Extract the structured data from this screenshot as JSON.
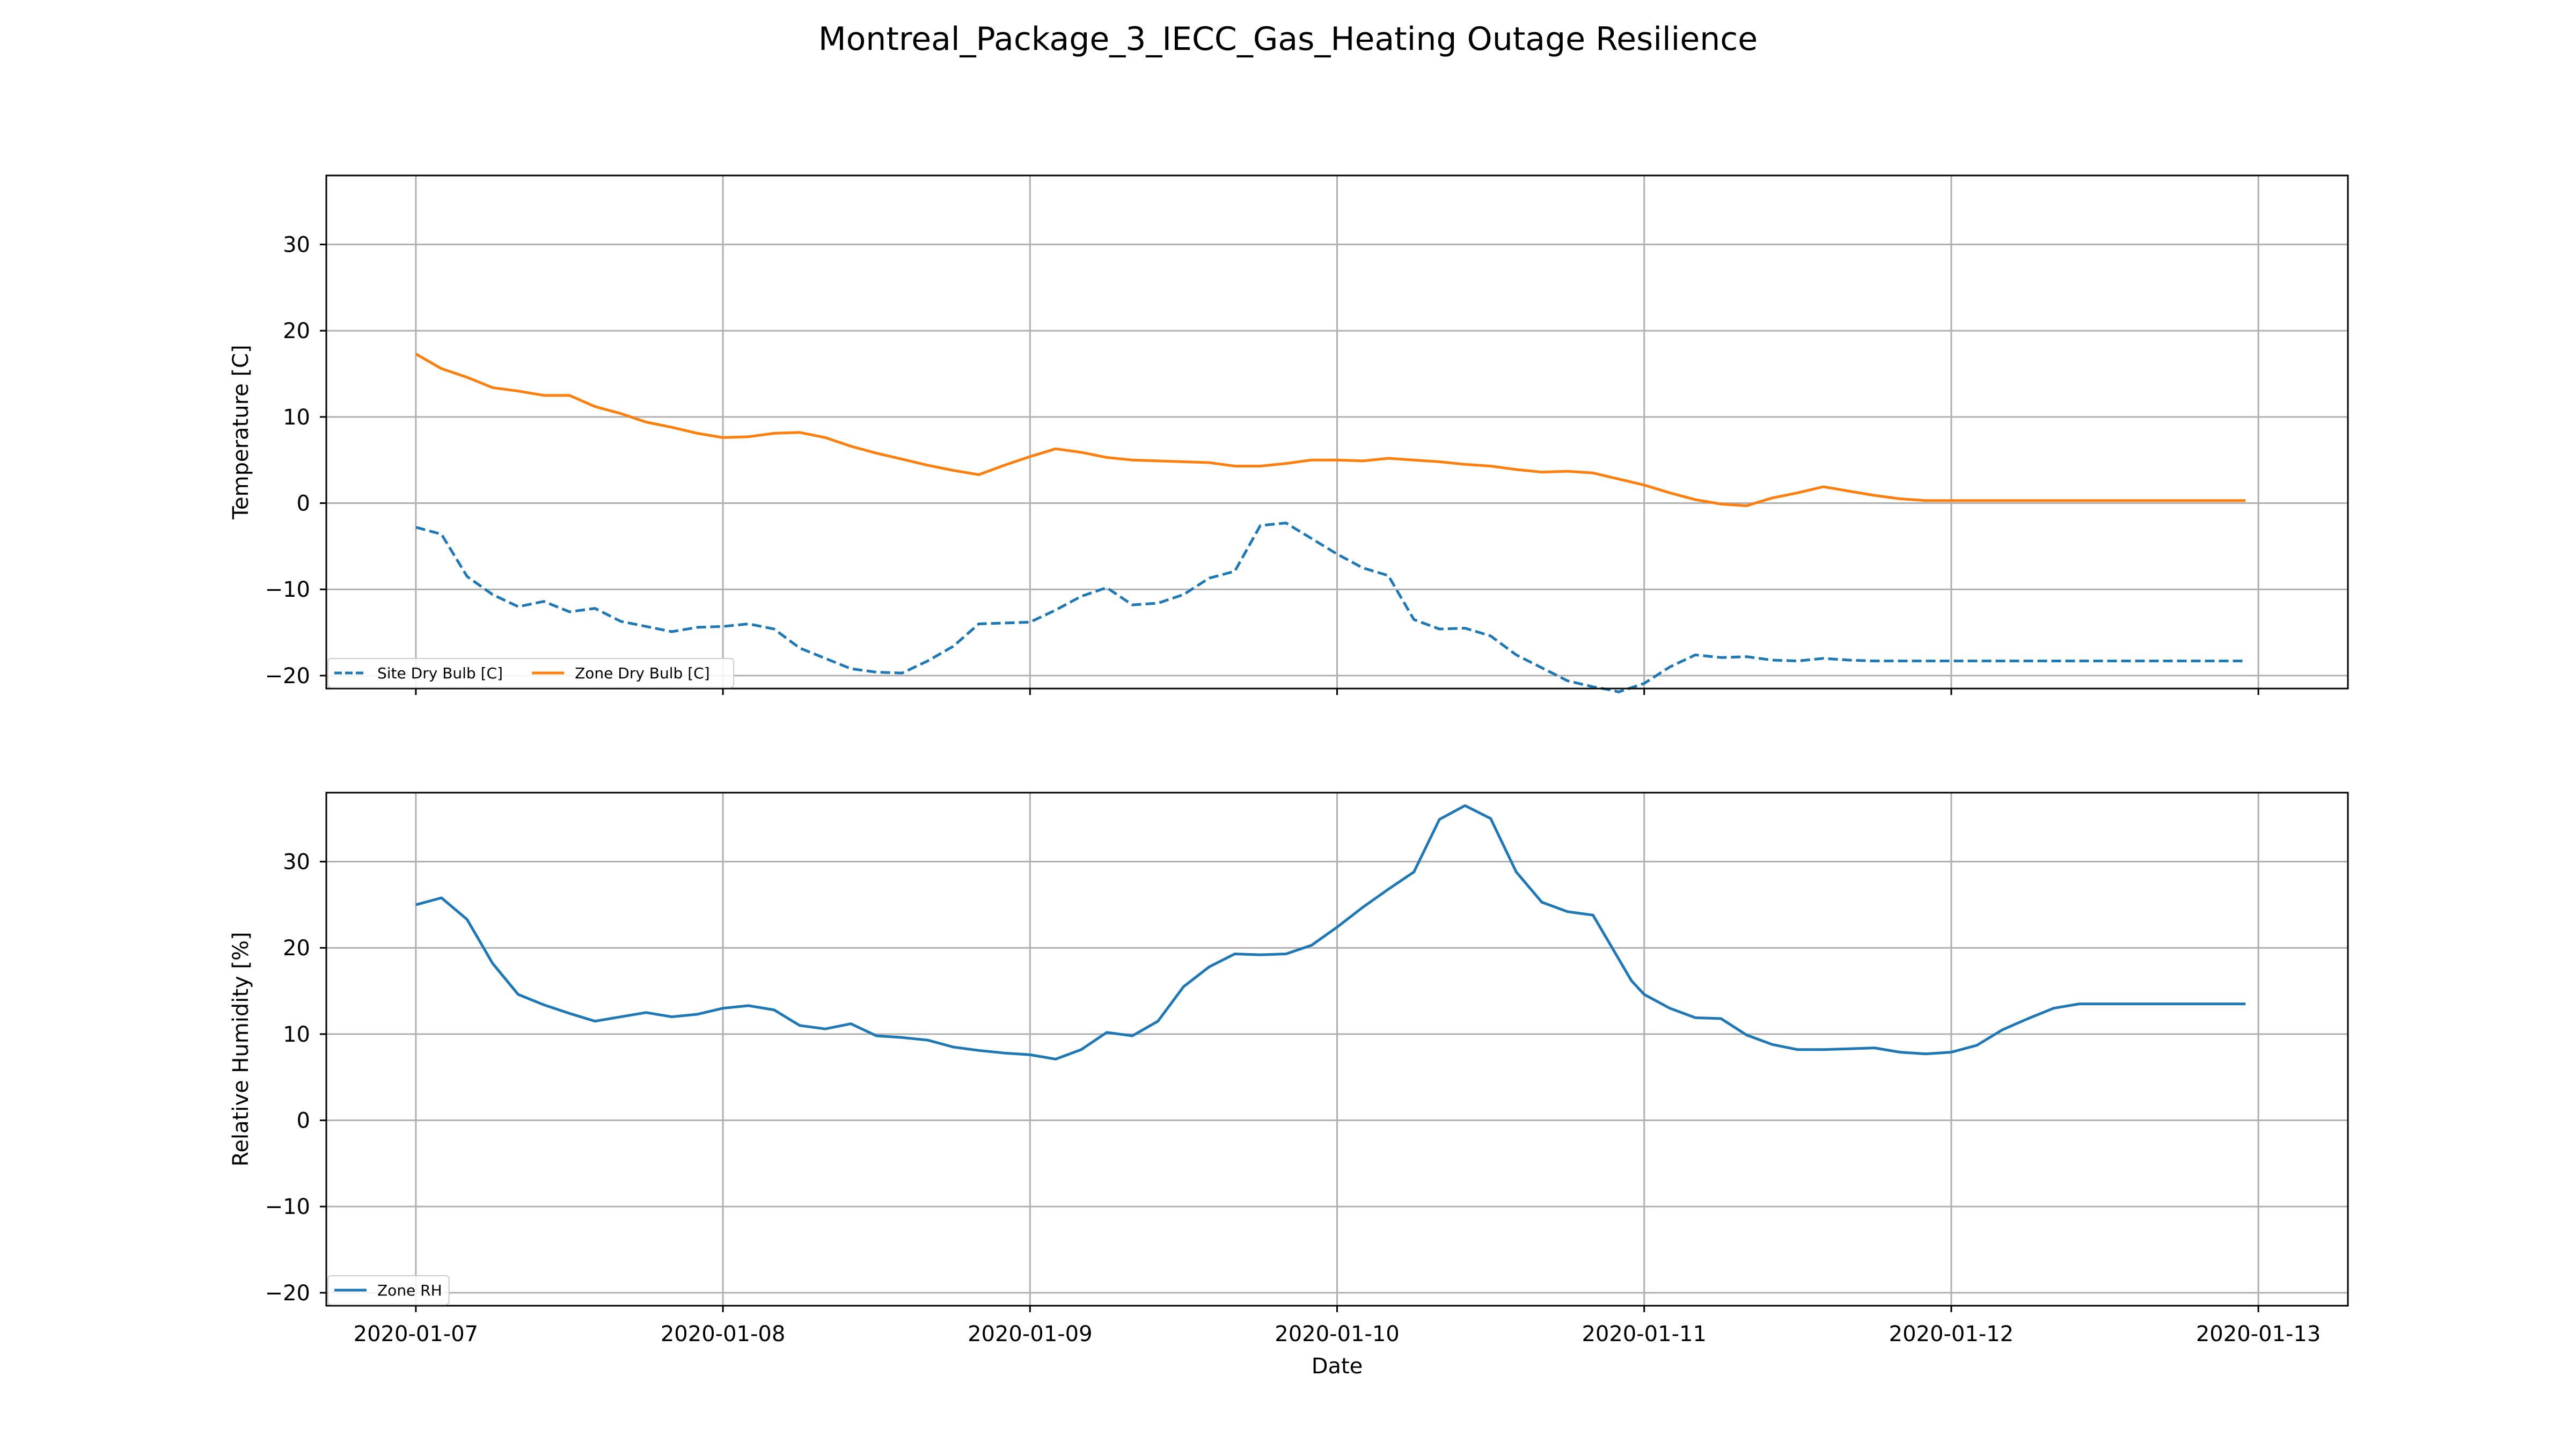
{
  "figure": {
    "title": "Montreal_Package_3_IECC_Gas_Heating Outage Resilience"
  },
  "colors": {
    "site_dry_bulb": "#1f77b4",
    "zone_dry_bulb": "#ff7f0e",
    "zone_rh": "#1f77b4",
    "grid": "#b0b0b0",
    "axes": "#000000",
    "background": "#ffffff"
  },
  "chart_data": [
    {
      "type": "line",
      "ylabel": "Temperature [C]",
      "xlabel": "",
      "xlim": [
        "2020-01-06 17:00",
        "2020-01-13 07:00"
      ],
      "ylim": [
        -21.5,
        38
      ],
      "x_ticks": [
        "2020-01-07",
        "2020-01-08",
        "2020-01-09",
        "2020-01-10",
        "2020-01-11",
        "2020-01-12",
        "2020-01-13"
      ],
      "x_ticklabels_visible": false,
      "y_ticks": [
        -20,
        -10,
        0,
        10,
        20,
        30
      ],
      "y_ticklabels": [
        "−20",
        "−10",
        "0",
        "10",
        "20",
        "30"
      ],
      "grid": true,
      "legend": "lower-left",
      "series": [
        {
          "name": "Site Dry Bulb [C]",
          "style": "dashed",
          "color": "#1f77b4",
          "x": [
            "2020-01-07 00:00",
            "2020-01-07 02:00",
            "2020-01-07 04:00",
            "2020-01-07 06:00",
            "2020-01-07 08:00",
            "2020-01-07 10:00",
            "2020-01-07 12:00",
            "2020-01-07 14:00",
            "2020-01-07 16:00",
            "2020-01-07 18:00",
            "2020-01-07 20:00",
            "2020-01-07 22:00",
            "2020-01-08 00:00",
            "2020-01-08 02:00",
            "2020-01-08 04:00",
            "2020-01-08 06:00",
            "2020-01-08 08:00",
            "2020-01-08 10:00",
            "2020-01-08 12:00",
            "2020-01-08 14:00",
            "2020-01-08 16:00",
            "2020-01-08 18:00",
            "2020-01-08 20:00",
            "2020-01-08 22:00",
            "2020-01-09 00:00",
            "2020-01-09 02:00",
            "2020-01-09 04:00",
            "2020-01-09 06:00",
            "2020-01-09 08:00",
            "2020-01-09 10:00",
            "2020-01-09 12:00",
            "2020-01-09 14:00",
            "2020-01-09 16:00",
            "2020-01-09 18:00",
            "2020-01-09 20:00",
            "2020-01-09 22:00",
            "2020-01-10 00:00",
            "2020-01-10 02:00",
            "2020-01-10 04:00",
            "2020-01-10 06:00",
            "2020-01-10 08:00",
            "2020-01-10 10:00",
            "2020-01-10 12:00",
            "2020-01-10 14:00",
            "2020-01-10 16:00",
            "2020-01-10 18:00",
            "2020-01-10 20:00",
            "2020-01-10 21:30",
            "2020-01-10 22:00",
            "2020-01-11 00:00",
            "2020-01-11 02:00",
            "2020-01-11 04:00",
            "2020-01-11 06:00",
            "2020-01-11 08:00",
            "2020-01-11 10:00",
            "2020-01-11 12:00",
            "2020-01-11 14:00",
            "2020-01-11 16:00",
            "2020-01-11 18:00",
            "2020-01-11 20:00",
            "2020-01-11 22:00",
            "2020-01-12 00:00",
            "2020-01-12 02:00",
            "2020-01-12 04:00",
            "2020-01-12 06:00",
            "2020-01-12 08:00",
            "2020-01-12 10:00",
            "2020-01-12 12:00",
            "2020-01-12 14:00",
            "2020-01-12 16:00",
            "2020-01-12 18:00",
            "2020-01-12 20:00",
            "2020-01-12 22:00",
            "2020-01-12 23:00"
          ],
          "values": [
            -2.8,
            -3.6,
            -8.5,
            -10.6,
            -12.0,
            -11.4,
            -12.6,
            -12.2,
            -13.7,
            -14.3,
            -14.9,
            -14.4,
            -14.3,
            -14.0,
            -14.6,
            -16.8,
            -18.0,
            -19.2,
            -19.6,
            -19.7,
            -18.3,
            -16.6,
            -14.0,
            -13.9,
            -13.8,
            -12.4,
            -10.8,
            -9.8,
            -11.8,
            -11.6,
            -10.6,
            -8.7,
            -7.9,
            -2.6,
            -2.3,
            -4.1,
            -5.9,
            -7.5,
            -8.4,
            -13.5,
            -14.6,
            -14.5,
            -15.4,
            -17.6,
            -19.1,
            -20.6,
            -21.3,
            -21.7,
            -21.9,
            -20.9,
            -19.0,
            -17.6,
            -17.9,
            -17.8,
            -18.2,
            -18.3,
            -18.0,
            -18.2,
            -18.3,
            -18.3,
            -18.3,
            -18.3,
            -18.3,
            -18.3,
            -18.3,
            -18.3,
            -18.3,
            -18.3,
            -18.3,
            -18.3,
            -18.3,
            -18.3,
            -18.3,
            -18.3
          ]
        },
        {
          "name": "Zone Dry Bulb [C]",
          "style": "solid",
          "color": "#ff7f0e",
          "x": [
            "2020-01-07 00:00",
            "2020-01-07 02:00",
            "2020-01-07 04:00",
            "2020-01-07 06:00",
            "2020-01-07 08:00",
            "2020-01-07 10:00",
            "2020-01-07 12:00",
            "2020-01-07 14:00",
            "2020-01-07 16:00",
            "2020-01-07 18:00",
            "2020-01-07 20:00",
            "2020-01-07 22:00",
            "2020-01-08 00:00",
            "2020-01-08 02:00",
            "2020-01-08 04:00",
            "2020-01-08 06:00",
            "2020-01-08 08:00",
            "2020-01-08 10:00",
            "2020-01-08 12:00",
            "2020-01-08 14:00",
            "2020-01-08 16:00",
            "2020-01-08 18:00",
            "2020-01-08 20:00",
            "2020-01-08 22:00",
            "2020-01-09 00:00",
            "2020-01-09 02:00",
            "2020-01-09 04:00",
            "2020-01-09 06:00",
            "2020-01-09 08:00",
            "2020-01-09 10:00",
            "2020-01-09 12:00",
            "2020-01-09 14:00",
            "2020-01-09 16:00",
            "2020-01-09 18:00",
            "2020-01-09 20:00",
            "2020-01-09 22:00",
            "2020-01-10 00:00",
            "2020-01-10 02:00",
            "2020-01-10 04:00",
            "2020-01-10 06:00",
            "2020-01-10 08:00",
            "2020-01-10 10:00",
            "2020-01-10 12:00",
            "2020-01-10 14:00",
            "2020-01-10 16:00",
            "2020-01-10 18:00",
            "2020-01-10 20:00",
            "2020-01-10 22:00",
            "2020-01-11 00:00",
            "2020-01-11 02:00",
            "2020-01-11 04:00",
            "2020-01-11 06:00",
            "2020-01-11 08:00",
            "2020-01-11 10:00",
            "2020-01-11 12:00",
            "2020-01-11 14:00",
            "2020-01-11 16:00",
            "2020-01-11 18:00",
            "2020-01-11 20:00",
            "2020-01-11 22:00",
            "2020-01-12 00:00",
            "2020-01-12 02:00",
            "2020-01-12 04:00",
            "2020-01-12 06:00",
            "2020-01-12 08:00",
            "2020-01-12 10:00",
            "2020-01-12 12:00",
            "2020-01-12 14:00",
            "2020-01-12 16:00",
            "2020-01-12 18:00",
            "2020-01-12 20:00",
            "2020-01-12 22:00",
            "2020-01-12 23:00"
          ],
          "values": [
            17.3,
            15.6,
            14.6,
            13.4,
            13.0,
            12.5,
            12.5,
            11.2,
            10.4,
            9.4,
            8.8,
            8.1,
            7.6,
            7.7,
            8.1,
            8.2,
            7.6,
            6.6,
            5.8,
            5.1,
            4.4,
            3.8,
            3.3,
            4.4,
            5.4,
            6.3,
            5.9,
            5.3,
            5.0,
            4.9,
            4.8,
            4.7,
            4.3,
            4.3,
            4.6,
            5.0,
            5.0,
            4.9,
            5.2,
            5.0,
            4.8,
            4.5,
            4.3,
            3.9,
            3.6,
            3.7,
            3.5,
            2.8,
            2.1,
            1.2,
            0.4,
            -0.1,
            -0.3,
            0.6,
            1.2,
            1.9,
            1.4,
            0.9,
            0.5,
            0.3,
            0.3,
            0.3,
            0.3,
            0.3,
            0.3,
            0.3,
            0.3,
            0.3,
            0.3,
            0.3,
            0.3,
            0.3,
            0.3
          ]
        }
      ]
    },
    {
      "type": "line",
      "ylabel": "Relative Humidity [%]",
      "xlabel": "Date",
      "xlim": [
        "2020-01-06 17:00",
        "2020-01-13 07:00"
      ],
      "ylim": [
        -21.5,
        38
      ],
      "x_ticks": [
        "2020-01-07",
        "2020-01-08",
        "2020-01-09",
        "2020-01-10",
        "2020-01-11",
        "2020-01-12",
        "2020-01-13"
      ],
      "x_ticklabels": [
        "2020-01-07",
        "2020-01-08",
        "2020-01-09",
        "2020-01-10",
        "2020-01-11",
        "2020-01-12",
        "2020-01-13"
      ],
      "y_ticks": [
        -20,
        -10,
        0,
        10,
        20,
        30
      ],
      "y_ticklabels": [
        "−20",
        "−10",
        "0",
        "10",
        "20",
        "30"
      ],
      "grid": true,
      "legend": "lower-left",
      "series": [
        {
          "name": "Zone RH",
          "style": "solid",
          "color": "#1f77b4",
          "x": [
            "2020-01-07 00:00",
            "2020-01-07 02:00",
            "2020-01-07 04:00",
            "2020-01-07 06:00",
            "2020-01-07 08:00",
            "2020-01-07 10:00",
            "2020-01-07 12:00",
            "2020-01-07 14:00",
            "2020-01-07 16:00",
            "2020-01-07 18:00",
            "2020-01-07 20:00",
            "2020-01-07 22:00",
            "2020-01-08 00:00",
            "2020-01-08 02:00",
            "2020-01-08 04:00",
            "2020-01-08 06:00",
            "2020-01-08 08:00",
            "2020-01-08 10:00",
            "2020-01-08 12:00",
            "2020-01-08 14:00",
            "2020-01-08 16:00",
            "2020-01-08 18:00",
            "2020-01-08 20:00",
            "2020-01-08 22:00",
            "2020-01-09 00:00",
            "2020-01-09 02:00",
            "2020-01-09 04:00",
            "2020-01-09 06:00",
            "2020-01-09 08:00",
            "2020-01-09 10:00",
            "2020-01-09 12:00",
            "2020-01-09 14:00",
            "2020-01-09 16:00",
            "2020-01-09 18:00",
            "2020-01-09 20:00",
            "2020-01-09 22:00",
            "2020-01-10 00:00",
            "2020-01-10 02:00",
            "2020-01-10 04:00",
            "2020-01-10 06:00",
            "2020-01-10 08:00",
            "2020-01-10 10:00",
            "2020-01-10 12:00",
            "2020-01-10 14:00",
            "2020-01-10 16:00",
            "2020-01-10 18:00",
            "2020-01-10 20:00",
            "2020-01-10 21:30",
            "2020-01-10 23:00",
            "2020-01-11 00:00",
            "2020-01-11 02:00",
            "2020-01-11 04:00",
            "2020-01-11 06:00",
            "2020-01-11 08:00",
            "2020-01-11 10:00",
            "2020-01-11 12:00",
            "2020-01-11 14:00",
            "2020-01-11 16:00",
            "2020-01-11 18:00",
            "2020-01-11 20:00",
            "2020-01-11 22:00",
            "2020-01-12 00:00",
            "2020-01-12 02:00",
            "2020-01-12 04:00",
            "2020-01-12 06:00",
            "2020-01-12 08:00",
            "2020-01-12 10:00",
            "2020-01-12 12:00",
            "2020-01-12 14:00",
            "2020-01-12 16:00",
            "2020-01-12 18:00",
            "2020-01-12 20:00",
            "2020-01-12 22:00",
            "2020-01-12 23:00"
          ],
          "values": [
            25.0,
            25.8,
            23.3,
            18.2,
            14.6,
            13.4,
            12.4,
            11.5,
            12.0,
            12.5,
            12.0,
            12.3,
            13.0,
            13.3,
            12.8,
            11.0,
            10.6,
            11.2,
            9.8,
            9.6,
            9.3,
            8.5,
            8.1,
            7.8,
            7.6,
            7.1,
            8.2,
            10.2,
            9.8,
            11.5,
            15.5,
            17.8,
            19.3,
            19.2,
            19.3,
            20.3,
            22.4,
            24.7,
            26.8,
            28.8,
            34.9,
            36.5,
            35.0,
            28.8,
            25.3,
            24.2,
            23.8,
            20.0,
            16.2,
            14.6,
            13.0,
            11.9,
            11.8,
            9.9,
            8.8,
            8.2,
            8.2,
            8.3,
            8.4,
            7.9,
            7.7,
            7.9,
            8.7,
            10.5,
            11.8,
            13.0,
            13.5,
            13.5,
            13.5,
            13.5,
            13.5,
            13.5,
            13.5,
            13.5
          ]
        }
      ]
    }
  ]
}
